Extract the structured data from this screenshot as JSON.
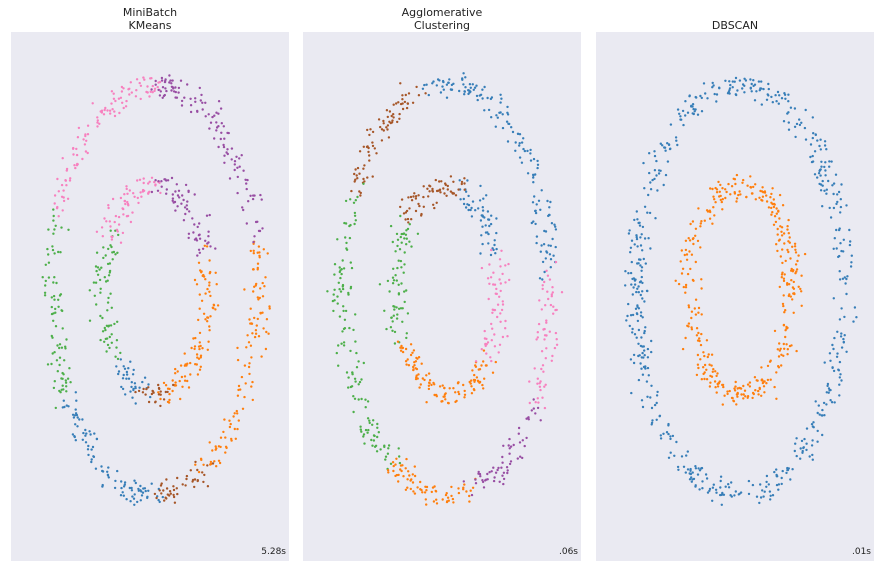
{
  "chart_data": [
    {
      "type": "scatter",
      "title": "MiniBatch\nKMeans",
      "time_label": "5.28s",
      "grid": false,
      "background": "#eaeaf2",
      "clusters": [
        {
          "color": "#ff7f0e",
          "rings": [
            {
              "ring": "inner",
              "from": -80,
              "to": 20
            },
            {
              "ring": "outer",
              "from": -60,
              "to": 15
            }
          ]
        },
        {
          "color": "#4daf4a",
          "rings": [
            {
              "ring": "inner",
              "from": 150,
              "to": 220
            },
            {
              "ring": "outer",
              "from": 158,
              "to": 210
            }
          ]
        },
        {
          "color": "#377eb8",
          "rings": [
            {
              "ring": "inner",
              "from": 220,
              "to": 255
            },
            {
              "ring": "outer",
              "from": 210,
              "to": 272
            }
          ]
        },
        {
          "color": "#a65628",
          "rings": [
            {
              "ring": "inner",
              "from": 255,
              "to": 280
            },
            {
              "ring": "outer",
              "from": 272,
              "to": 300
            }
          ]
        },
        {
          "color": "#f781bf",
          "rings": [
            {
              "ring": "inner",
              "from": 85,
              "to": 150
            },
            {
              "ring": "outer",
              "from": 90,
              "to": 158
            }
          ]
        },
        {
          "color": "#984ea3",
          "rings": [
            {
              "ring": "inner",
              "from": 20,
              "to": 85
            },
            {
              "ring": "outer",
              "from": 15,
              "to": 90
            }
          ]
        }
      ]
    },
    {
      "type": "scatter",
      "title": "Agglomerative\nClustering",
      "time_label": ".06s",
      "grid": false,
      "background": "#eaeaf2",
      "clusters": [
        {
          "color": "#377eb8",
          "rings": [
            {
              "ring": "inner",
              "from": 20,
              "to": 75
            },
            {
              "ring": "outer",
              "from": 5,
              "to": 102
            }
          ]
        },
        {
          "color": "#a65628",
          "rings": [
            {
              "ring": "inner",
              "from": 75,
              "to": 140
            },
            {
              "ring": "outer",
              "from": 102,
              "to": 152
            }
          ]
        },
        {
          "color": "#4daf4a",
          "rings": [
            {
              "ring": "inner",
              "from": 140,
              "to": 210
            },
            {
              "ring": "outer",
              "from": 152,
              "to": 238
            }
          ]
        },
        {
          "color": "#ff7f0e",
          "rings": [
            {
              "ring": "inner",
              "from": 210,
              "to": 320
            },
            {
              "ring": "outer",
              "from": 238,
              "to": 285
            }
          ]
        },
        {
          "color": "#984ea3",
          "rings": [
            {
              "ring": "outer",
              "from": 285,
              "to": 325
            }
          ]
        },
        {
          "color": "#f781bf",
          "rings": [
            {
              "ring": "inner",
              "from": -40,
              "to": 20
            },
            {
              "ring": "outer",
              "from": -35,
              "to": 5
            }
          ]
        }
      ]
    },
    {
      "type": "scatter",
      "title": "DBSCAN",
      "time_label": ".01s",
      "grid": false,
      "background": "#eaeaf2",
      "clusters": [
        {
          "color": "#377eb8",
          "rings": [
            {
              "ring": "outer",
              "from": 0,
              "to": 360
            }
          ]
        },
        {
          "color": "#ff7f0e",
          "rings": [
            {
              "ring": "inner",
              "from": 0,
              "to": 360
            }
          ]
        }
      ]
    }
  ]
}
